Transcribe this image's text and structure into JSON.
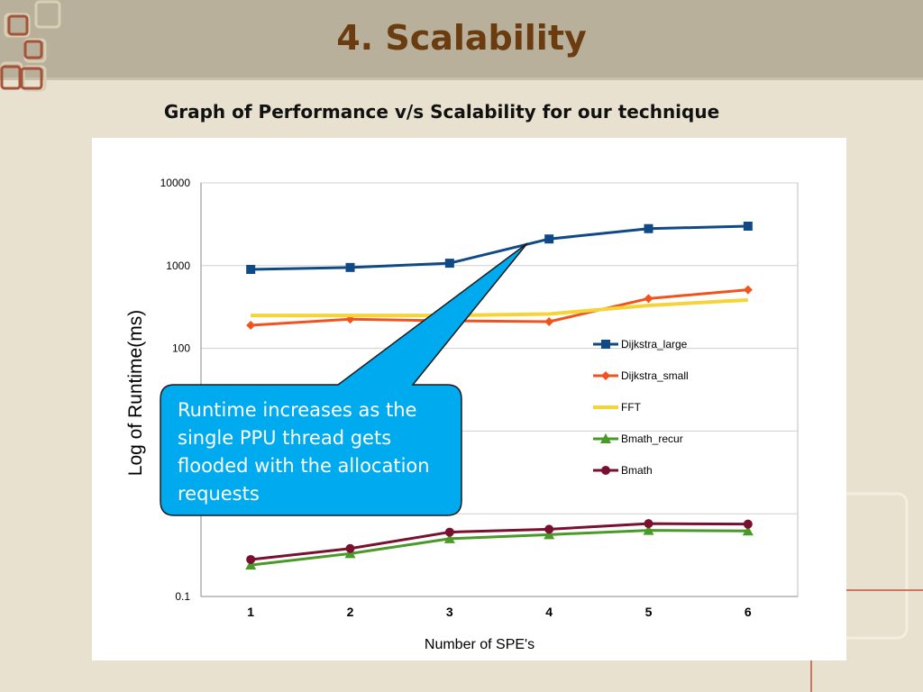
{
  "slide": {
    "title": "4.   Scalability",
    "subtitle": "Graph of Performance v/s Scalability for our technique"
  },
  "chart_data": {
    "type": "line",
    "xlabel": "Number of SPE's",
    "ylabel": "Log of Runtime(ms)",
    "y_scale": "log",
    "ylim": [
      0.1,
      10000
    ],
    "y_tick_labels": [
      "10000",
      "1000",
      "100",
      "0.1"
    ],
    "categories": [
      "1",
      "2",
      "3",
      "4",
      "5",
      "6"
    ],
    "grid": true,
    "legend_position": "right",
    "series": [
      {
        "name": "Dijkstra_large",
        "color": "#0f4a86",
        "marker": "square",
        "values": [
          900,
          950,
          1070,
          2100,
          2800,
          3000
        ]
      },
      {
        "name": "Dijkstra_small",
        "color": "#f0541c",
        "marker": "diamond",
        "values": [
          190,
          225,
          215,
          210,
          400,
          510
        ]
      },
      {
        "name": "FFT",
        "color": "#f5d43a",
        "marker": "none",
        "values": [
          250,
          250,
          250,
          260,
          330,
          385
        ]
      },
      {
        "name": "Bmath_recur",
        "color": "#4a9a2a",
        "marker": "triangle",
        "values": [
          0.24,
          0.33,
          0.5,
          0.56,
          0.63,
          0.62
        ]
      },
      {
        "name": "Bmath",
        "color": "#7a1030",
        "marker": "circle",
        "values": [
          0.28,
          0.38,
          0.6,
          0.65,
          0.76,
          0.75
        ]
      }
    ],
    "callout": {
      "text": "Runtime increases as the single PPU thread gets flooded with the allocation requests",
      "fill": "#00aaee"
    }
  }
}
